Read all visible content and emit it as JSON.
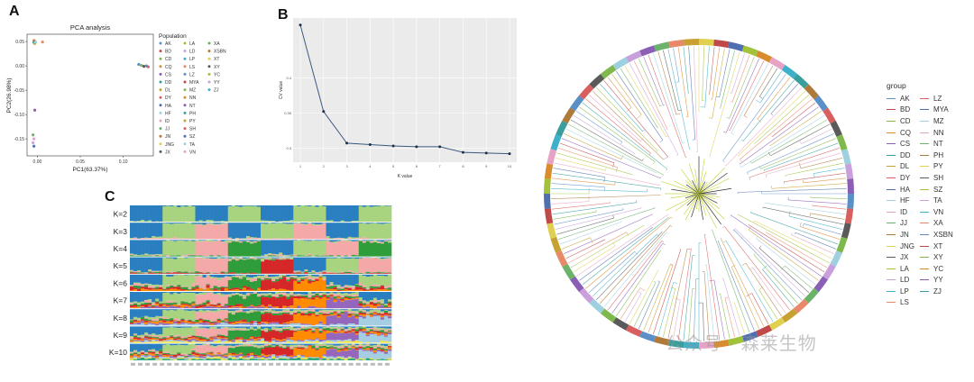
{
  "panels": {
    "a": "A",
    "b": "B",
    "c": "C"
  },
  "watermark": "公众号 · 森莱生物",
  "chart_data": [
    {
      "type": "scatter",
      "title": "PCA analysis",
      "xlabel": "PC1(63.37%)",
      "ylabel": "PC2(26.98%)",
      "x_ticks": [
        "0.00",
        "0.05",
        "0.10"
      ],
      "y_ticks": [
        "0.05",
        "0.00",
        "-0.05",
        "-0.10",
        "-0.15"
      ],
      "legend_title": "Population",
      "legend_placement": "right",
      "legend": [
        "AK",
        "BD",
        "CD",
        "CQ",
        "CS",
        "DD",
        "DL",
        "DY",
        "HA",
        "HF",
        "ID",
        "JJ",
        "JN",
        "JNG",
        "JX",
        "LA",
        "LD",
        "LP",
        "LS",
        "LZ",
        "MYA",
        "MZ",
        "NN",
        "NT",
        "PH",
        "PY",
        "SH",
        "SZ",
        "TA",
        "VN",
        "XA",
        "XSBN",
        "XT",
        "XY",
        "YC",
        "YY",
        "ZJ"
      ],
      "points": [
        {
          "x": -0.004,
          "y": 0.052,
          "group": "CQ"
        },
        {
          "x": -0.003,
          "y": 0.05,
          "group": "CS"
        },
        {
          "x": -0.004,
          "y": 0.048,
          "group": "DD"
        },
        {
          "x": -0.003,
          "y": 0.046,
          "group": "DL"
        },
        {
          "x": -0.002,
          "y": 0.049,
          "group": "HF"
        },
        {
          "x": 0.006,
          "y": 0.049,
          "group": "LS"
        },
        {
          "x": -0.003,
          "y": -0.091,
          "group": "NT"
        },
        {
          "x": -0.005,
          "y": -0.142,
          "group": "JJ"
        },
        {
          "x": -0.004,
          "y": -0.15,
          "group": "ID"
        },
        {
          "x": -0.005,
          "y": -0.158,
          "group": "YY"
        },
        {
          "x": -0.004,
          "y": -0.165,
          "group": "HA"
        },
        {
          "x": 0.118,
          "y": 0.003,
          "group": "LZ"
        },
        {
          "x": 0.121,
          "y": 0.001,
          "group": "MZ"
        },
        {
          "x": 0.124,
          "y": -0.001,
          "group": "XY"
        },
        {
          "x": 0.127,
          "y": 0.0,
          "group": "AK"
        },
        {
          "x": 0.129,
          "y": -0.002,
          "group": "SH"
        }
      ]
    },
    {
      "type": "line",
      "xlabel": "K value",
      "ylabel": "CV value",
      "x": [
        1,
        2,
        3,
        4,
        5,
        6,
        7,
        8,
        9,
        10
      ],
      "values": [
        0.475,
        0.352,
        0.307,
        0.305,
        0.303,
        0.302,
        0.302,
        0.294,
        0.293,
        0.292
      ],
      "x_ticks": [
        "1",
        "2",
        "3",
        "4",
        "5",
        "6",
        "7",
        "8",
        "9",
        "10"
      ],
      "y_ticks": [
        "0.4",
        "0.35",
        "0.3"
      ],
      "ylim": [
        0.28,
        0.485
      ],
      "grid": true
    },
    {
      "type": "bar",
      "stacked": true,
      "rows": [
        "K=2",
        "K=3",
        "K=4",
        "K=5",
        "K=6",
        "K=7",
        "K=8",
        "K=9",
        "K=10"
      ]
    }
  ],
  "tree_legend": {
    "title": "group",
    "col1": [
      "AK",
      "BD",
      "CD",
      "CQ",
      "CS",
      "DD",
      "DL",
      "DY",
      "HA",
      "HF",
      "ID",
      "JJ",
      "JN",
      "JNG",
      "JX",
      "LA",
      "LD",
      "LP",
      "LS"
    ],
    "col2": [
      "LZ",
      "MYA",
      "MZ",
      "NN",
      "NT",
      "PH",
      "PY",
      "SH",
      "SZ",
      "TA",
      "VN",
      "XA",
      "XSBN",
      "XT",
      "XY",
      "YC",
      "YY",
      "ZJ"
    ]
  },
  "colors": {
    "palette": [
      "#2a7fc1",
      "#a8d37f",
      "#f4a8a8",
      "#2e9d3a",
      "#d62728",
      "#ff8c00",
      "#9467bd",
      "#a6cee3",
      "#f0e442",
      "#1b9e77",
      "#e377c2",
      "#8c564b"
    ],
    "group_palette": [
      "#5b8fc7",
      "#c04a4a",
      "#7fb94d",
      "#d98c2e",
      "#8a5fb5",
      "#3a9e9e",
      "#c7a233",
      "#d95f5f",
      "#4f6fb0",
      "#9fd0e0",
      "#e7a3c6",
      "#6bb36b",
      "#b07a3a",
      "#e0d050",
      "#5a5a5a",
      "#a2c23a",
      "#c9a0dc",
      "#3fb0c9",
      "#e88a6a"
    ]
  }
}
